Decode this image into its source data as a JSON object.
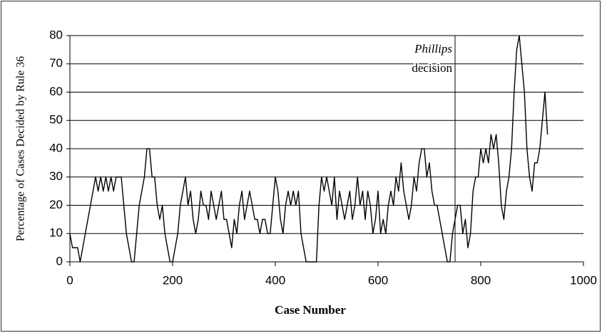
{
  "chart_data": {
    "type": "line",
    "xlabel": "Case Number",
    "ylabel": "Percentage of Cases Decided by Rule 36",
    "annotation": {
      "x": 750,
      "lines": [
        "Phillips",
        "decision"
      ]
    },
    "xlim": [
      0,
      1000
    ],
    "xticks": [
      0,
      200,
      400,
      600,
      800,
      1000
    ],
    "ylim": [
      0,
      80
    ],
    "yticks": [
      0,
      10,
      20,
      30,
      40,
      50,
      60,
      70,
      80
    ],
    "grid": true,
    "x": [
      0,
      5,
      10,
      15,
      20,
      25,
      30,
      35,
      40,
      45,
      50,
      55,
      60,
      65,
      70,
      75,
      80,
      85,
      90,
      95,
      100,
      105,
      110,
      115,
      120,
      125,
      130,
      135,
      140,
      145,
      150,
      155,
      160,
      165,
      170,
      175,
      180,
      185,
      190,
      195,
      200,
      205,
      210,
      215,
      220,
      225,
      230,
      235,
      240,
      245,
      250,
      255,
      260,
      265,
      270,
      275,
      280,
      285,
      290,
      295,
      300,
      305,
      310,
      315,
      320,
      325,
      330,
      335,
      340,
      345,
      350,
      355,
      360,
      365,
      370,
      375,
      380,
      385,
      390,
      395,
      400,
      405,
      410,
      415,
      420,
      425,
      430,
      435,
      440,
      445,
      450,
      455,
      460,
      465,
      470,
      475,
      480,
      485,
      490,
      495,
      500,
      505,
      510,
      515,
      520,
      525,
      530,
      535,
      540,
      545,
      550,
      555,
      560,
      565,
      570,
      575,
      580,
      585,
      590,
      595,
      600,
      605,
      610,
      615,
      620,
      625,
      630,
      635,
      640,
      645,
      650,
      655,
      660,
      665,
      670,
      675,
      680,
      685,
      690,
      695,
      700,
      705,
      710,
      715,
      720,
      725,
      730,
      735,
      740,
      745,
      750,
      755,
      760,
      765,
      770,
      775,
      780,
      785,
      790,
      795,
      800,
      805,
      810,
      815,
      820,
      825,
      830,
      835,
      840,
      845,
      850,
      855,
      860,
      865,
      870,
      875,
      880,
      885,
      890,
      895,
      900,
      905,
      910,
      915,
      920,
      925,
      930
    ],
    "series": [
      {
        "color": "#000000",
        "values": [
          10,
          5,
          5,
          5,
          0,
          5,
          10,
          15,
          20,
          25,
          30,
          25,
          30,
          25,
          30,
          25,
          30,
          25,
          30,
          30,
          30,
          20,
          10,
          5,
          0,
          0,
          10,
          20,
          25,
          30,
          40,
          40,
          30,
          30,
          20,
          15,
          20,
          10,
          5,
          0,
          0,
          5,
          10,
          20,
          25,
          30,
          20,
          25,
          15,
          10,
          15,
          25,
          20,
          20,
          15,
          25,
          20,
          15,
          20,
          25,
          15,
          15,
          10,
          5,
          15,
          10,
          20,
          25,
          15,
          20,
          25,
          20,
          15,
          15,
          10,
          15,
          15,
          10,
          10,
          20,
          30,
          25,
          15,
          10,
          20,
          25,
          20,
          25,
          20,
          25,
          10,
          5,
          0,
          0,
          0,
          0,
          0,
          20,
          30,
          25,
          30,
          25,
          20,
          30,
          15,
          25,
          20,
          15,
          20,
          25,
          15,
          20,
          30,
          20,
          25,
          15,
          25,
          20,
          10,
          15,
          25,
          10,
          15,
          10,
          20,
          25,
          20,
          30,
          25,
          35,
          25,
          20,
          15,
          20,
          30,
          25,
          35,
          40,
          40,
          30,
          35,
          25,
          20,
          20,
          15,
          10,
          5,
          0,
          0,
          10,
          15,
          20,
          20,
          10,
          15,
          5,
          10,
          25,
          30,
          30,
          40,
          35,
          40,
          35,
          45,
          40,
          45,
          35,
          20,
          15,
          25,
          30,
          40,
          60,
          75,
          80,
          70,
          60,
          40,
          30,
          25,
          35,
          35,
          40,
          50,
          60,
          45
        ]
      }
    ]
  }
}
